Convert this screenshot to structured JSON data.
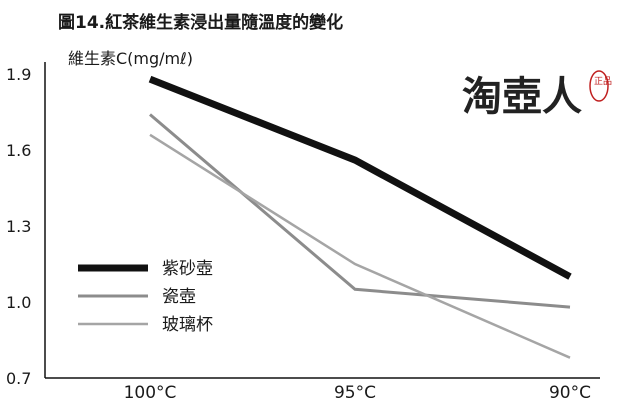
{
  "chart_data": {
    "type": "line",
    "title": "圖14.紅茶維生素浸出量隨溫度的變化",
    "ylabel": "維生素C(mg/mℓ)",
    "xlabel": "",
    "categories": [
      "100°C",
      "95°C",
      "90°C"
    ],
    "ylim": [
      0.7,
      1.9
    ],
    "yticks": [
      "1.9",
      "1.6",
      "1.3",
      "1.0",
      "0.7"
    ],
    "series": [
      {
        "name": "紫砂壺",
        "values": [
          1.88,
          1.56,
          1.1
        ],
        "color": "#111111"
      },
      {
        "name": "瓷壺",
        "values": [
          1.74,
          1.05,
          0.98
        ],
        "color": "#8c8c8c"
      },
      {
        "name": "玻璃杯",
        "values": [
          1.66,
          1.15,
          0.78
        ],
        "color": "#a5a5a5"
      }
    ],
    "legend_position": "left-bottom",
    "grid": false
  },
  "watermark": {
    "text": "淘壺人",
    "stamp": "正品"
  }
}
